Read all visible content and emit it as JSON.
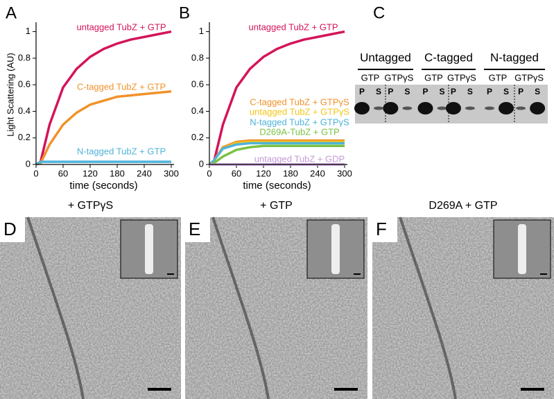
{
  "chart_data": [
    {
      "type": "line",
      "panel": "A",
      "ylabel": "Light Scattering (AU)",
      "xlabel": "time (seconds)",
      "x": [
        0,
        10,
        30,
        60,
        90,
        120,
        150,
        180,
        210,
        240,
        270,
        300
      ],
      "xlim": [
        0,
        300
      ],
      "xticks": [
        0,
        60,
        120,
        180,
        240,
        300
      ],
      "ylim": [
        0,
        1.05
      ],
      "yticks": [
        0,
        0.2,
        0.4,
        0.6,
        0.8,
        1
      ],
      "series": [
        {
          "name": "untagged TubZ + GTP",
          "color": "#d4145a",
          "values": [
            0,
            0.02,
            0.3,
            0.58,
            0.72,
            0.81,
            0.87,
            0.91,
            0.94,
            0.96,
            0.98,
            1.0
          ]
        },
        {
          "name": "C-tagged TubZ + GTP",
          "color": "#f0922b",
          "values": [
            0,
            0.01,
            0.15,
            0.3,
            0.39,
            0.45,
            0.48,
            0.51,
            0.52,
            0.53,
            0.54,
            0.55
          ]
        },
        {
          "name": "N-tagged TubZ + GTP",
          "color": "#4fb3d9",
          "values": [
            0,
            0.02,
            0.02,
            0.02,
            0.02,
            0.02,
            0.02,
            0.02,
            0.02,
            0.02,
            0.02,
            0.02
          ]
        }
      ]
    },
    {
      "type": "line",
      "panel": "B",
      "xlabel": "time (seconds)",
      "x": [
        0,
        10,
        30,
        60,
        90,
        120,
        150,
        180,
        210,
        240,
        270,
        300
      ],
      "xlim": [
        0,
        300
      ],
      "xticks": [
        0,
        60,
        120,
        180,
        240,
        300
      ],
      "ylim": [
        0,
        1.05
      ],
      "yticks": [
        0,
        0.2,
        0.4,
        0.6,
        0.8,
        1
      ],
      "series": [
        {
          "name": "untagged TubZ + GTP",
          "color": "#d4145a",
          "values": [
            0,
            0.02,
            0.3,
            0.58,
            0.72,
            0.81,
            0.87,
            0.91,
            0.94,
            0.96,
            0.98,
            1.0
          ]
        },
        {
          "name": "C-tagged TubZ + GTPγS",
          "color": "#f0922b",
          "values": [
            0,
            0.03,
            0.13,
            0.17,
            0.18,
            0.18,
            0.18,
            0.18,
            0.18,
            0.18,
            0.18,
            0.18
          ]
        },
        {
          "name": "untagged TubZ + GTPγS",
          "color": "#f5c518",
          "values": [
            0,
            0.03,
            0.12,
            0.16,
            0.17,
            0.17,
            0.17,
            0.17,
            0.17,
            0.17,
            0.17,
            0.17
          ]
        },
        {
          "name": "N-tagged TubZ + GTPγS",
          "color": "#4fb3d9",
          "values": [
            0,
            0.03,
            0.12,
            0.15,
            0.16,
            0.16,
            0.16,
            0.16,
            0.16,
            0.16,
            0.16,
            0.16
          ]
        },
        {
          "name": "D269A-TubZ + GTP",
          "color": "#7ac143",
          "values": [
            0,
            0.01,
            0.06,
            0.11,
            0.13,
            0.14,
            0.14,
            0.14,
            0.14,
            0.14,
            0.14,
            0.14
          ]
        },
        {
          "name": "untagged TubZ + GDP",
          "color": "#c49ad6",
          "values": [
            0,
            0,
            0,
            0,
            0,
            0,
            0,
            0,
            0,
            0,
            0,
            0
          ]
        }
      ]
    }
  ],
  "gel": {
    "panel": "C",
    "lanes": [
      "P",
      "S"
    ],
    "groups": [
      {
        "name": "Untagged",
        "conditions": [
          "GTP",
          "GTPγS"
        ]
      },
      {
        "name": "C-tagged",
        "conditions": [
          "GTP",
          "GTPγS"
        ]
      },
      {
        "name": "N-tagged",
        "conditions": [
          "GTP",
          "GTPγS"
        ]
      }
    ]
  },
  "micrographs": [
    {
      "panel": "D",
      "label": "+ GTPγS"
    },
    {
      "panel": "E",
      "label": "+ GTP"
    },
    {
      "panel": "F",
      "label": "D269A + GTP"
    }
  ]
}
